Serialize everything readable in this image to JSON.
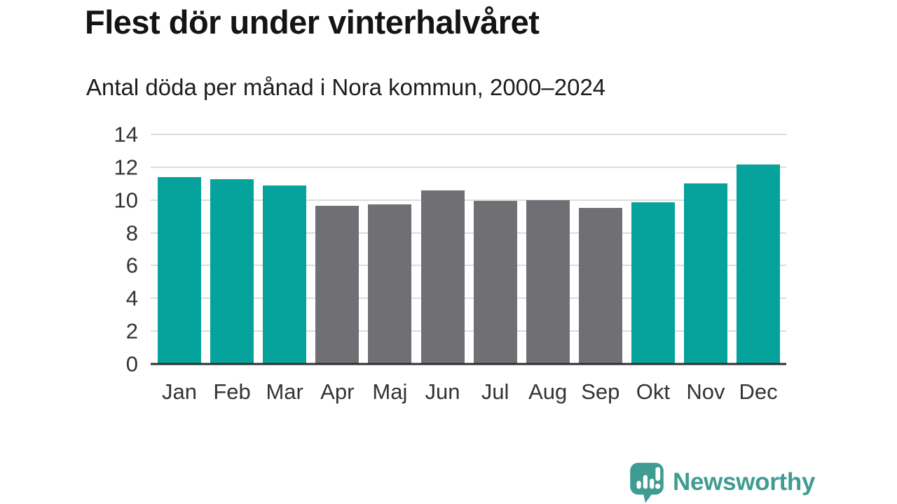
{
  "header": {
    "title": "Flest dör under vinterhalvåret",
    "subtitle": "Antal döda per månad i Nora kommun, 2000–2024"
  },
  "chart_data": {
    "type": "bar",
    "title": "Flest dör under vinterhalvåret",
    "subtitle": "Antal döda per månad i Nora kommun, 2000–2024",
    "categories": [
      "Jan",
      "Feb",
      "Mar",
      "Apr",
      "Maj",
      "Jun",
      "Jul",
      "Aug",
      "Sep",
      "Okt",
      "Nov",
      "Dec"
    ],
    "values": [
      11.4,
      11.25,
      10.9,
      9.65,
      9.75,
      10.6,
      9.95,
      10.0,
      9.5,
      9.85,
      11.0,
      12.15
    ],
    "bar_colors": [
      "#05a39b",
      "#05a39b",
      "#05a39b",
      "#6f6f74",
      "#6f6f74",
      "#6f6f74",
      "#6f6f74",
      "#6f6f74",
      "#6f6f74",
      "#05a39b",
      "#05a39b",
      "#05a39b"
    ],
    "xlabel": "",
    "ylabel": "",
    "ylim": [
      0,
      14
    ],
    "yticks": [
      0,
      2,
      4,
      6,
      8,
      10,
      12,
      14
    ],
    "grid": true,
    "legend_position": "none",
    "colors": {
      "winter_highlight": "#05a39b",
      "summer_neutral": "#6f6f74",
      "gridline": "#dcdcdc",
      "axis_line": "#2f2f2f",
      "tick_label": "#333333"
    }
  },
  "footer": {
    "brand_label": "Newsworthy",
    "brand_color": "#3f9c93",
    "logo_icon": "newsworthy-speech-bubble-bar-chart-icon"
  }
}
